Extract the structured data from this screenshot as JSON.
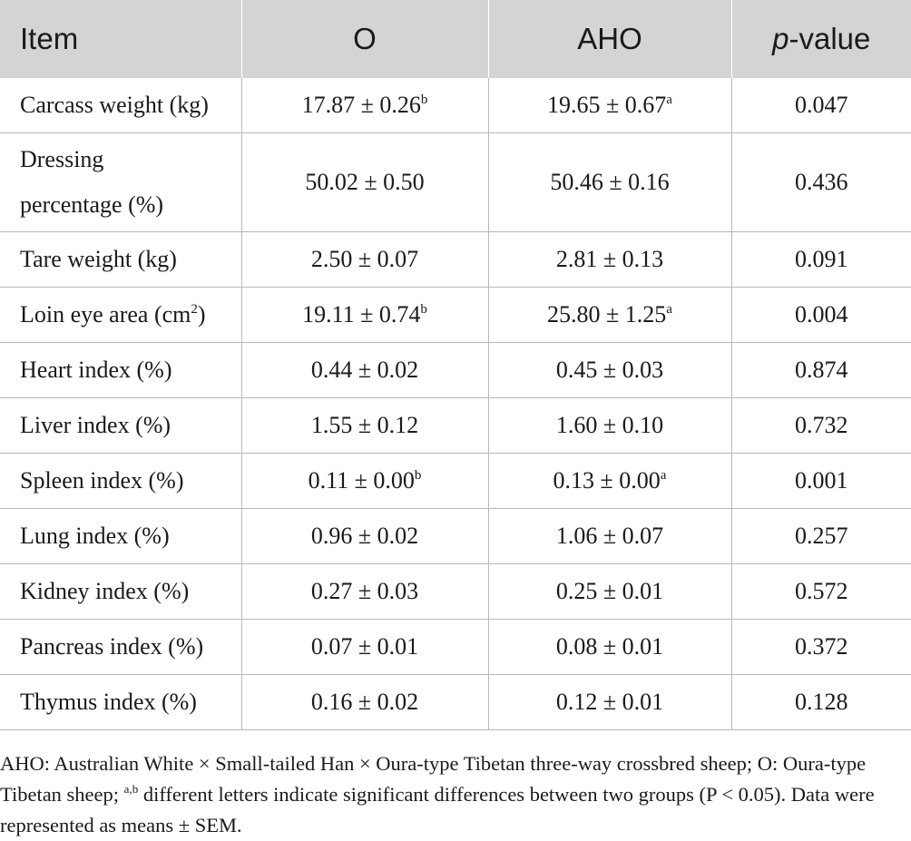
{
  "table": {
    "headers": {
      "item": "Item",
      "o": "O",
      "aho": "AHO",
      "p_italic": "p",
      "p_rest": "-value"
    },
    "rows": [
      {
        "item": "Carcass weight (kg)",
        "o": "17.87 ± 0.26",
        "o_sup": "b",
        "aho": "19.65 ± 0.67",
        "aho_sup": "a",
        "p": "0.047"
      },
      {
        "item_line1": "Dressing",
        "item_line2": "percentage (%)",
        "o": "50.02 ± 0.50",
        "aho": "50.46 ± 0.16",
        "p": "0.436"
      },
      {
        "item": "Tare weight (kg)",
        "o": "2.50 ± 0.07",
        "aho": "2.81 ± 0.13",
        "p": "0.091"
      },
      {
        "item": "Loin eye area (cm",
        "item_sup": "2",
        "item_after": ")",
        "o": "19.11 ± 0.74",
        "o_sup": "b",
        "aho": "25.80 ± 1.25",
        "aho_sup": "a",
        "p": "0.004"
      },
      {
        "item": "Heart index (%)",
        "o": "0.44 ± 0.02",
        "aho": "0.45 ± 0.03",
        "p": "0.874"
      },
      {
        "item": "Liver index (%)",
        "o": "1.55 ± 0.12",
        "aho": "1.60 ± 0.10",
        "p": "0.732"
      },
      {
        "item": "Spleen index (%)",
        "o": "0.11 ± 0.00",
        "o_sup": "b",
        "aho": "0.13 ± 0.00",
        "aho_sup": "a",
        "p": "0.001"
      },
      {
        "item": "Lung index (%)",
        "o": "0.96 ± 0.02",
        "aho": "1.06 ± 0.07",
        "p": "0.257"
      },
      {
        "item": "Kidney index (%)",
        "o": "0.27 ± 0.03",
        "aho": "0.25 ± 0.01",
        "p": "0.572"
      },
      {
        "item": "Pancreas index (%)",
        "o": "0.07 ± 0.01",
        "aho": "0.08 ± 0.01",
        "p": "0.372"
      },
      {
        "item": "Thymus index (%)",
        "o": "0.16 ± 0.02",
        "aho": "0.12 ± 0.01",
        "p": "0.128"
      }
    ]
  },
  "footnote": {
    "part1": "AHO: Australian White × Small-tailed Han × Oura-type Tibetan three-way crossbred sheep; O: Oura-type Tibetan sheep; ",
    "sup": "a,b",
    "part2": " different letters indicate significant differences between two groups (P < 0.05). Data were represented as means ± SEM."
  }
}
